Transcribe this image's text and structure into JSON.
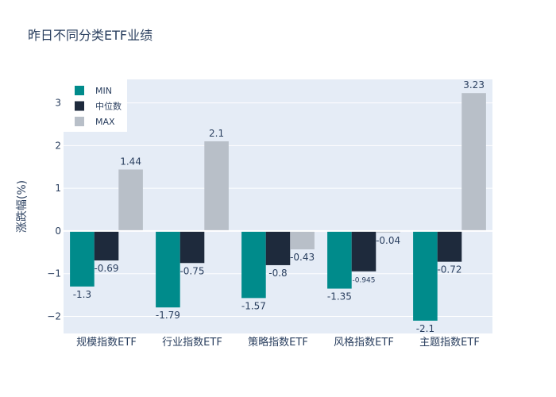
{
  "chart_data": {
    "type": "bar",
    "title": "昨日不同分类ETF业绩",
    "ylabel": "涨跌幅(%)",
    "xlabel": "",
    "categories": [
      "规模指数ETF",
      "行业指数ETF",
      "策略指数ETF",
      "风格指数ETF",
      "主题指数ETF"
    ],
    "series": [
      {
        "name": "MIN",
        "color": "#008b8b",
        "values": [
          -1.3,
          -1.79,
          -1.57,
          -1.35,
          -2.1
        ],
        "labels": [
          "-1.3",
          "-1.79",
          "-1.57",
          "-1.35",
          "-2.1"
        ]
      },
      {
        "name": "中位数",
        "color": "#1e2a3c",
        "values": [
          -0.69,
          -0.75,
          -0.8,
          -0.945,
          -0.72
        ],
        "labels": [
          "-0.69",
          "-0.75",
          "-0.8",
          "-0.945",
          "-0.72"
        ]
      },
      {
        "name": "MAX",
        "color": "#b8bfc8",
        "values": [
          1.44,
          2.1,
          -0.43,
          -0.04,
          3.23
        ],
        "labels": [
          "1.44",
          "2.1",
          "-0.43",
          "-0.04",
          "3.23"
        ]
      }
    ],
    "ylim": [
      -2.4,
      3.55
    ],
    "yticks": [
      -2,
      -1,
      0,
      1,
      2,
      3
    ],
    "ytick_labels": [
      "−2",
      "−1",
      "0",
      "1",
      "2",
      "3"
    ],
    "grid": true,
    "legend_position": "top-left",
    "plot_bgcolor": "#e5ecf6"
  }
}
